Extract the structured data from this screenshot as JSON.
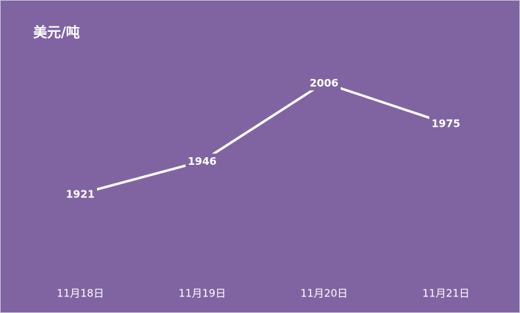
{
  "chart_data": {
    "type": "line",
    "title": "美元/吨",
    "categories": [
      "11月18日",
      "11月19日",
      "11月20日",
      "11月21日"
    ],
    "values": [
      1921,
      1946,
      2006,
      1975
    ],
    "color": "#ffffff",
    "background": "#8064a2",
    "ylim": [
      1860,
      2010
    ],
    "grid": false,
    "data_labels": true,
    "drop_lines": true
  }
}
